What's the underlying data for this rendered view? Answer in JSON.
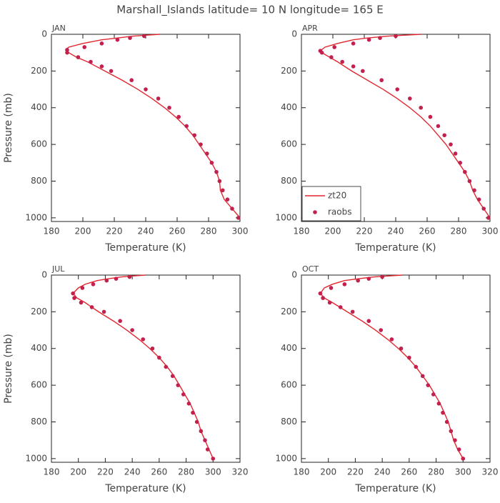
{
  "title": "Marshall_Islands  latitude= 10 N longitude= 165 E",
  "chart_data": [
    {
      "type": "line",
      "title": "JAN",
      "xlabel": "Temperature (K)",
      "ylabel": "Pressure (mb)",
      "xlim": [
        180,
        300
      ],
      "xticks": [
        180,
        200,
        220,
        240,
        260,
        280,
        300
      ],
      "ylim": [
        1020,
        0
      ],
      "yticks": [
        0,
        200,
        400,
        600,
        800,
        1000
      ],
      "series": [
        {
          "name": "zt20",
          "type": "line",
          "color": "#e3262e",
          "x": [
            249,
            240,
            232,
            222,
            212,
            200,
            191,
            189,
            191,
            196,
            203,
            214,
            225,
            235,
            244,
            252,
            259,
            265,
            270,
            274,
            278,
            282,
            285,
            287,
            287.5,
            290,
            295,
            300
          ],
          "values": [
            0,
            5,
            10,
            20,
            30,
            50,
            70,
            85,
            100,
            125,
            150,
            200,
            250,
            300,
            350,
            400,
            450,
            500,
            550,
            600,
            650,
            700,
            750,
            800,
            850,
            900,
            950,
            1000
          ]
        },
        {
          "name": "raobs",
          "type": "scatter",
          "color": "#c2204d",
          "x": [
            239,
            230,
            222,
            212,
            201,
            190,
            190,
            197,
            205,
            212,
            218,
            231,
            240,
            248,
            255,
            261,
            266,
            271,
            275,
            279,
            282,
            285,
            287,
            289,
            292,
            295,
            299
          ],
          "values": [
            10,
            20,
            30,
            50,
            70,
            85,
            100,
            125,
            150,
            175,
            200,
            250,
            300,
            350,
            400,
            450,
            500,
            550,
            600,
            650,
            700,
            750,
            800,
            850,
            900,
            950,
            1000
          ]
        }
      ]
    },
    {
      "type": "line",
      "title": "APR",
      "xlabel": "Temperature (K)",
      "legend": "lower left",
      "xlim": [
        180,
        300
      ],
      "xticks": [
        180,
        200,
        220,
        240,
        260,
        280,
        300
      ],
      "ylim": [
        1020,
        0
      ],
      "yticks": [
        0,
        200,
        400,
        600,
        800,
        1000
      ],
      "series": [
        {
          "name": "zt20",
          "type": "line",
          "color": "#e3262e",
          "x": [
            256,
            245,
            235,
            222,
            213,
            203,
            195,
            192,
            193,
            198,
            203,
            212,
            222,
            232,
            241,
            249,
            256,
            262,
            267,
            272,
            276,
            280,
            284,
            287,
            289,
            292,
            296,
            300
          ],
          "values": [
            0,
            5,
            10,
            20,
            30,
            50,
            70,
            90,
            100,
            125,
            150,
            200,
            250,
            300,
            350,
            400,
            450,
            500,
            550,
            600,
            650,
            700,
            750,
            800,
            850,
            900,
            950,
            1000
          ]
        },
        {
          "name": "raobs",
          "type": "scatter",
          "color": "#c2204d",
          "x": [
            240,
            230,
            223,
            213,
            201,
            192,
            193,
            199,
            206,
            213,
            219,
            231,
            241,
            249,
            256,
            262,
            267,
            271,
            275,
            278,
            281,
            284,
            287,
            290,
            293,
            296,
            299
          ],
          "values": [
            10,
            20,
            30,
            50,
            70,
            90,
            100,
            125,
            150,
            175,
            200,
            250,
            300,
            350,
            400,
            450,
            500,
            550,
            600,
            650,
            700,
            750,
            800,
            850,
            900,
            950,
            1000
          ]
        }
      ]
    },
    {
      "type": "line",
      "title": "JUL",
      "xlabel": "Temperature (K)",
      "ylabel": "Pressure (mb)",
      "xlim": [
        180,
        320
      ],
      "xticks": [
        180,
        200,
        220,
        240,
        260,
        280,
        300,
        320
      ],
      "ylim": [
        1020,
        0
      ],
      "yticks": [
        0,
        200,
        400,
        600,
        800,
        1000
      ],
      "series": [
        {
          "name": "zt20",
          "type": "line",
          "color": "#e3262e",
          "x": [
            250,
            240,
            232,
            222,
            214,
            205,
            200,
            196,
            199,
            205,
            215,
            226,
            236,
            245,
            253,
            260,
            266,
            271,
            275,
            279,
            283,
            286,
            289,
            291,
            294,
            297,
            300
          ],
          "values": [
            0,
            5,
            10,
            20,
            30,
            50,
            70,
            100,
            125,
            150,
            200,
            250,
            300,
            350,
            400,
            450,
            500,
            550,
            600,
            650,
            700,
            750,
            800,
            850,
            900,
            950,
            1000
          ]
        },
        {
          "name": "raobs",
          "type": "scatter",
          "color": "#c2204d",
          "x": [
            238,
            228,
            221,
            211,
            203,
            196,
            197,
            202,
            210,
            219,
            231,
            240,
            248,
            255,
            260,
            265,
            270,
            274,
            278,
            282,
            285,
            288,
            291,
            294,
            296,
            300
          ],
          "values": [
            10,
            20,
            30,
            50,
            70,
            100,
            125,
            150,
            175,
            200,
            250,
            300,
            350,
            400,
            450,
            500,
            550,
            600,
            650,
            700,
            750,
            800,
            850,
            900,
            950,
            1000
          ]
        }
      ]
    },
    {
      "type": "line",
      "title": "OCT",
      "xlabel": "Temperature (K)",
      "xlim": [
        180,
        320
      ],
      "xticks": [
        180,
        200,
        220,
        240,
        260,
        280,
        300,
        320
      ],
      "ylim": [
        1020,
        0
      ],
      "yticks": [
        0,
        200,
        400,
        600,
        800,
        1000
      ],
      "series": [
        {
          "name": "zt20",
          "type": "line",
          "color": "#e3262e",
          "x": [
            255,
            244,
            234,
            222,
            212,
            203,
            197,
            194,
            197,
            203,
            214,
            225,
            235,
            244,
            252,
            259,
            265,
            270,
            275,
            279,
            283,
            286,
            289,
            291,
            293,
            296,
            300
          ],
          "values": [
            0,
            5,
            10,
            20,
            30,
            50,
            70,
            100,
            125,
            150,
            200,
            250,
            300,
            350,
            400,
            450,
            500,
            550,
            600,
            650,
            700,
            750,
            800,
            850,
            900,
            950,
            1000
          ]
        },
        {
          "name": "raobs",
          "type": "scatter",
          "color": "#c2204d",
          "x": [
            240,
            230,
            222,
            212,
            202,
            194,
            196,
            201,
            209,
            218,
            230,
            239,
            247,
            254,
            260,
            265,
            270,
            274,
            278,
            282,
            285,
            288,
            291,
            294,
            297,
            300
          ],
          "values": [
            10,
            20,
            30,
            50,
            70,
            100,
            125,
            150,
            175,
            200,
            250,
            300,
            350,
            400,
            450,
            500,
            550,
            600,
            650,
            700,
            750,
            800,
            850,
            900,
            950,
            1000
          ]
        }
      ]
    }
  ]
}
